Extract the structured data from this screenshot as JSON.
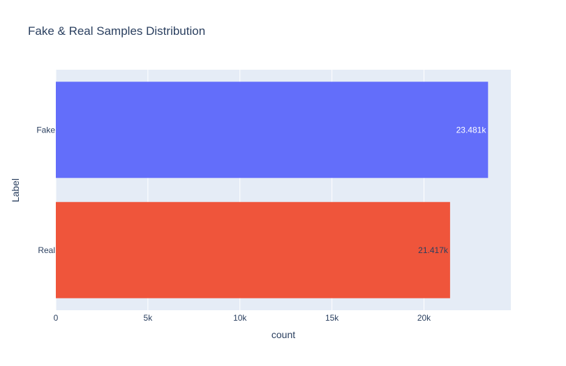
{
  "chart_data": {
    "type": "bar",
    "orientation": "horizontal",
    "title": "Fake & Real Samples Distribution",
    "xlabel": "count",
    "ylabel": "Label",
    "categories": [
      "Fake",
      "Real"
    ],
    "values": [
      23481,
      21417
    ],
    "data_labels": [
      "23.481k",
      "21.417k"
    ],
    "bar_colors": [
      "#636efa",
      "#ef553b"
    ],
    "data_label_colors": [
      "#ffffff",
      "#2a3f5f"
    ],
    "xlim": [
      0,
      24720
    ],
    "x_ticks": [
      0,
      5000,
      10000,
      15000,
      20000
    ],
    "x_tick_labels": [
      "0",
      "5k",
      "10k",
      "15k",
      "20k"
    ],
    "grid": true,
    "plot_background": "#e5ecf6",
    "grid_color": "#ffffff",
    "text_color": "#2a3f5f"
  }
}
